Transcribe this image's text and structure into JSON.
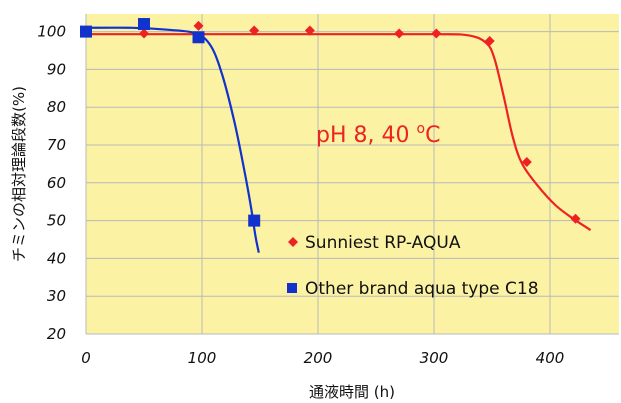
{
  "chart_data": {
    "type": "scatter",
    "title": "",
    "xlabel": "通液時間 (h)",
    "ylabel": "チミンの相対理論段数(%)",
    "xlim": [
      0,
      440
    ],
    "ylim": [
      20,
      105
    ],
    "x_ticks": [
      "0",
      "100",
      "200",
      "300",
      "400"
    ],
    "y_ticks": [
      "20",
      "30",
      "40",
      "50",
      "60",
      "70",
      "80",
      "90",
      "100"
    ],
    "x_tick_values": [
      0,
      100,
      200,
      300,
      400
    ],
    "y_tick_values": [
      20,
      30,
      40,
      50,
      60,
      70,
      80,
      90,
      100
    ],
    "grid": true,
    "legend_position": "lower-right",
    "background_color": "#fbf2a4",
    "annotation": {
      "text_main": "pH 8,  40 ",
      "text_sup": "o",
      "text_unit": "C",
      "color": "#ee2222"
    },
    "series": [
      {
        "name": "Sunniest RP-AQUA",
        "color": "#ee2222",
        "marker": "diamond",
        "points": [
          {
            "x": 0,
            "y": 100
          },
          {
            "x": 50,
            "y": 99.5
          },
          {
            "x": 97,
            "y": 101.5
          },
          {
            "x": 145,
            "y": 100.3
          },
          {
            "x": 193,
            "y": 100.3
          },
          {
            "x": 270,
            "y": 99.5
          },
          {
            "x": 302,
            "y": 99.5
          },
          {
            "x": 348,
            "y": 97.5
          },
          {
            "x": 380,
            "y": 65.5
          },
          {
            "x": 422,
            "y": 50.5
          }
        ],
        "curve": [
          [
            0,
            99.3
          ],
          [
            100,
            99.3
          ],
          [
            200,
            99.3
          ],
          [
            300,
            99.3
          ],
          [
            330,
            99
          ],
          [
            345,
            97
          ],
          [
            352,
            93
          ],
          [
            360,
            83
          ],
          [
            368,
            72
          ],
          [
            376,
            65
          ],
          [
            390,
            59
          ],
          [
            405,
            54
          ],
          [
            420,
            50.5
          ],
          [
            435,
            47.5
          ]
        ]
      },
      {
        "name": "Other brand aqua type C18",
        "color": "#1133cc",
        "marker": "square",
        "points": [
          {
            "x": 0,
            "y": 100
          },
          {
            "x": 50,
            "y": 102
          },
          {
            "x": 97,
            "y": 98.5
          },
          {
            "x": 145,
            "y": 50
          }
        ],
        "curve": [
          [
            0,
            101
          ],
          [
            40,
            101
          ],
          [
            70,
            100.5
          ],
          [
            95,
            99.5
          ],
          [
            108,
            96
          ],
          [
            118,
            88
          ],
          [
            128,
            76
          ],
          [
            136,
            64
          ],
          [
            142,
            54
          ],
          [
            146,
            46
          ],
          [
            149,
            41.5
          ]
        ]
      }
    ]
  }
}
